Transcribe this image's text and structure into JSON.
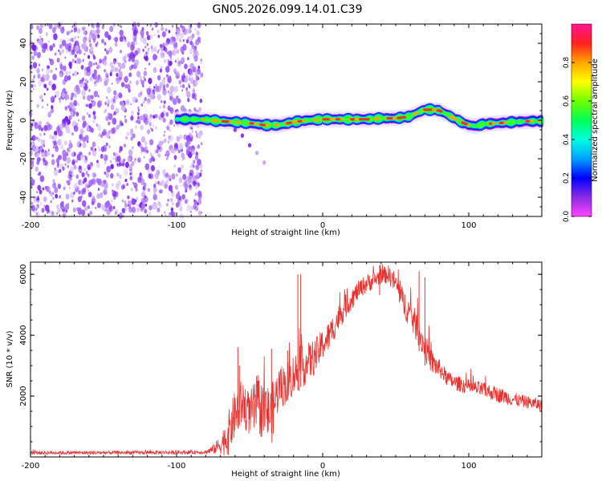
{
  "title": "GN05.2026.099.14.01.C39",
  "colors": {
    "line": "#e8322f",
    "frame": "#000000",
    "background": "#ffffff"
  },
  "colormap": [
    "#ff44ff",
    "#8a2be2",
    "#0000ff",
    "#00a0ff",
    "#00ffe0",
    "#00ff55",
    "#70ff00",
    "#ffff00",
    "#ffa500",
    "#ff2020",
    "#ff1493"
  ],
  "chart_data": [
    {
      "type": "heatmap",
      "name": "spectrogram",
      "title": "",
      "xlabel": "Height of straight line (km)",
      "ylabel": "Frequency (Hz)",
      "xlim": [
        -200,
        150
      ],
      "ylim": [
        -50,
        50
      ],
      "xticks": [
        -200,
        -100,
        0,
        100
      ],
      "yticks": [
        -40,
        -20,
        0,
        20,
        40
      ],
      "colorbar": {
        "label": "Normalized spectral amplitude",
        "range": [
          0,
          1
        ],
        "ticks": [
          "0.0",
          "0.2",
          "0.4",
          "0.6",
          "0.8"
        ]
      },
      "noise_region_x": [
        -200,
        -85
      ],
      "ridge": {
        "x": [
          -100,
          -90,
          -80,
          -70,
          -60,
          -50,
          -40,
          -30,
          -20,
          -10,
          0,
          10,
          20,
          30,
          40,
          50,
          60,
          65,
          70,
          75,
          80,
          85,
          90,
          95,
          100,
          105,
          110,
          120,
          130,
          140,
          150
        ],
        "freq": [
          0.5,
          0.5,
          0.3,
          -0.5,
          -1,
          -1.5,
          -2.5,
          -2.5,
          -1,
          0,
          0.5,
          0.5,
          0.5,
          0.5,
          1,
          1,
          2,
          4,
          5.5,
          5.5,
          5,
          3,
          1,
          -1,
          -2.5,
          -3,
          -2,
          -1.5,
          -1,
          -0.5,
          -0.5
        ],
        "amplitude": [
          0.3,
          0.35,
          0.7,
          0.75,
          0.7,
          0.65,
          0.7,
          0.75,
          0.75,
          0.8,
          0.9,
          0.9,
          0.85,
          0.85,
          0.8,
          0.75,
          0.8,
          0.85,
          0.9,
          0.9,
          0.85,
          0.75,
          0.65,
          0.6,
          0.6,
          0.55,
          0.5,
          0.45,
          0.45,
          0.4,
          0.35
        ]
      },
      "side_branch": {
        "x": [
          -60,
          -55,
          -50,
          -45,
          -40
        ],
        "freq": [
          -5,
          -8,
          -13,
          -17,
          -22
        ]
      }
    },
    {
      "type": "line",
      "name": "snr",
      "title": "",
      "xlabel": "Height of straight line (km)",
      "ylabel": "SNR (10 * v/v)",
      "xlim": [
        -200,
        150
      ],
      "ylim": [
        0,
        6400
      ],
      "xticks": [
        -200,
        -100,
        0,
        100
      ],
      "yticks": [
        2000,
        4000,
        6000
      ],
      "series": [
        {
          "name": "SNR",
          "x": [
            -200,
            -150,
            -100,
            -80,
            -75,
            -70,
            -65,
            -60,
            -55,
            -50,
            -45,
            -40,
            -35,
            -30,
            -25,
            -20,
            -15,
            -10,
            -5,
            0,
            5,
            10,
            15,
            20,
            25,
            30,
            35,
            40,
            45,
            50,
            55,
            60,
            65,
            70,
            75,
            80,
            85,
            90,
            100,
            110,
            120,
            130,
            140,
            150
          ],
          "y": [
            140,
            140,
            150,
            160,
            250,
            400,
            700,
            1400,
            1800,
            1400,
            1700,
            1500,
            1400,
            2300,
            2400,
            2700,
            2900,
            3100,
            3300,
            3700,
            4000,
            4500,
            4900,
            5200,
            5500,
            5700,
            5800,
            5950,
            6000,
            5700,
            5100,
            4700,
            4200,
            3600,
            3100,
            2900,
            2600,
            2450,
            2300,
            2200,
            2050,
            1900,
            1800,
            1700
          ],
          "noise": [
            60,
            60,
            60,
            60,
            150,
            300,
            700,
            800,
            800,
            700,
            1000,
            900,
            1000,
            700,
            700,
            700,
            700,
            650,
            600,
            500,
            500,
            450,
            400,
            350,
            300,
            300,
            300,
            250,
            300,
            350,
            450,
            500,
            500,
            450,
            400,
            300,
            250,
            250,
            250,
            250,
            250,
            230,
            200,
            200
          ]
        }
      ],
      "spikes": [
        {
          "x": -58,
          "y": 3600
        },
        {
          "x": -57,
          "y": 3000
        },
        {
          "x": -35,
          "y": 3550
        },
        {
          "x": -24,
          "y": 3500
        },
        {
          "x": -17,
          "y": 6000
        },
        {
          "x": -15,
          "y": 6000
        },
        {
          "x": 39,
          "y": 6300
        },
        {
          "x": 66,
          "y": 6100
        },
        {
          "x": 70,
          "y": 5900
        }
      ]
    }
  ]
}
